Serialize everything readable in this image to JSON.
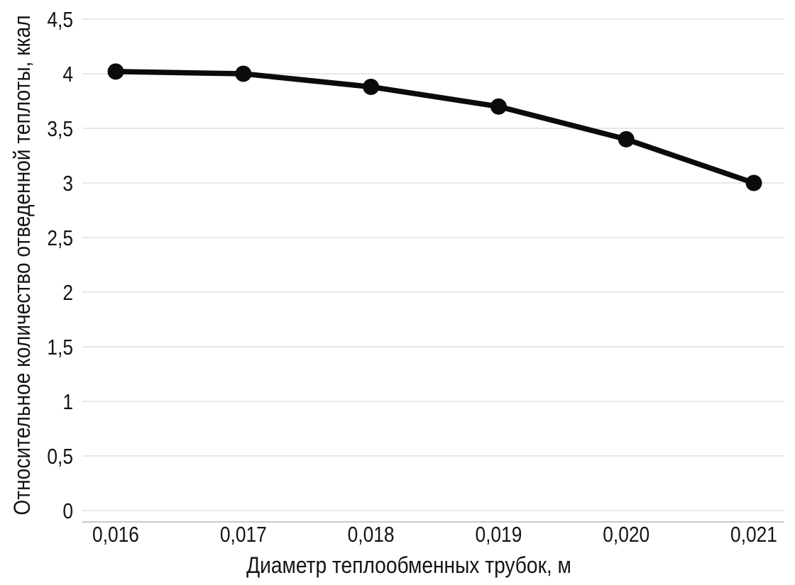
{
  "page": {
    "background": "#ffffff"
  },
  "chart_data": {
    "type": "line",
    "title": "",
    "xlabel": "Диаметр теплообменных трубок, м",
    "ylabel": "Относительное количество отведенной теплоты, ккал",
    "categories": [
      "0,016",
      "0,017",
      "0,018",
      "0,019",
      "0,020",
      "0,021"
    ],
    "x": [
      0.016,
      0.017,
      0.018,
      0.019,
      0.02,
      0.021
    ],
    "series": [
      {
        "name": "Относительное количество отведенной теплоты, ккал",
        "values": [
          4.02,
          4.0,
          3.88,
          3.7,
          3.4,
          3.0
        ]
      }
    ],
    "y_tick_labels": [
      "0",
      "0,5",
      "1",
      "1,5",
      "2",
      "2,5",
      "3",
      "3,5",
      "4",
      "4,5"
    ],
    "y_tick_values": [
      0,
      0.5,
      1,
      1.5,
      2,
      2.5,
      3,
      3.5,
      4,
      4.5
    ],
    "ylim": [
      0,
      4.5
    ],
    "grid": "horizontal-only",
    "legend": "none",
    "marker": "filled-circle",
    "decimal_separator": ",",
    "colors": {
      "series": "#0b0b0b",
      "marker": "#0b0b0b",
      "gridline": "#e8e8e8",
      "axis_line": "#c9c9c9",
      "text": "#141414",
      "background": "#ffffff"
    }
  }
}
